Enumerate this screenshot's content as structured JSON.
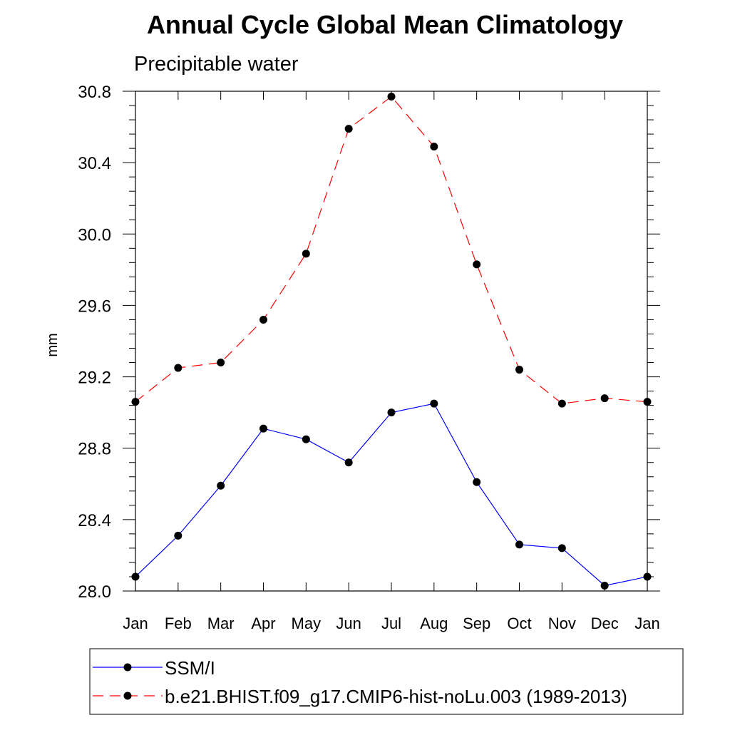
{
  "chart_data": {
    "type": "line",
    "title": "Annual Cycle Global Mean Climatology",
    "subtitle": "Precipitable water",
    "xlabel": "",
    "ylabel": "mm",
    "categories": [
      "Jan",
      "Feb",
      "Mar",
      "Apr",
      "May",
      "Jun",
      "Jul",
      "Aug",
      "Sep",
      "Oct",
      "Nov",
      "Dec",
      "Jan"
    ],
    "ylim": [
      28.0,
      30.8
    ],
    "yticks": [
      "28.0",
      "28.4",
      "28.8",
      "29.2",
      "29.6",
      "30.0",
      "30.4",
      "30.8"
    ],
    "grid": false,
    "legend_position": "bottom",
    "series": [
      {
        "name": "SSM/I",
        "color": "#0000ff",
        "line_style": "solid",
        "values": [
          28.08,
          28.31,
          28.59,
          28.91,
          28.85,
          28.72,
          29.0,
          29.05,
          28.61,
          28.26,
          28.24,
          28.03,
          28.08
        ]
      },
      {
        "name": "b.e21.BHIST.f09_g17.CMIP6-hist-noLu.003 (1989-2013)",
        "color": "#ff0000",
        "line_style": "dashed",
        "values": [
          29.06,
          29.25,
          29.28,
          29.52,
          29.89,
          30.59,
          30.77,
          30.49,
          29.83,
          29.24,
          29.05,
          29.08,
          29.06
        ]
      }
    ]
  }
}
